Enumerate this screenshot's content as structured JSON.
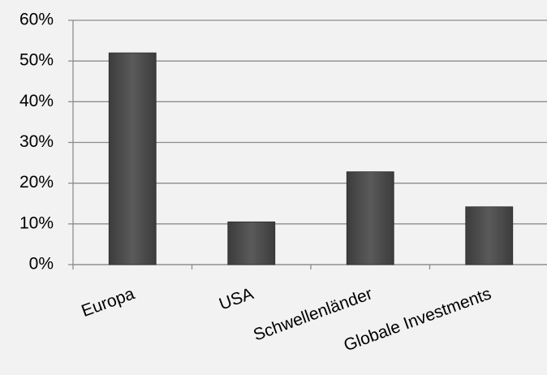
{
  "chart_data": {
    "type": "bar",
    "categories": [
      "Europa",
      "USA",
      "Schwellenländer",
      "Globale Investments"
    ],
    "values": [
      52,
      10.5,
      22.8,
      14.2
    ],
    "color": "#5a5a5a",
    "ylim": [
      0,
      60
    ],
    "yticks": [
      {
        "value": 0,
        "label": "0%"
      },
      {
        "value": 10,
        "label": "10%"
      },
      {
        "value": 20,
        "label": "20%"
      },
      {
        "value": 30,
        "label": "30%"
      },
      {
        "value": 40,
        "label": "40%"
      },
      {
        "value": 50,
        "label": "50%"
      },
      {
        "value": 60,
        "label": "60%"
      }
    ],
    "grid": true
  }
}
